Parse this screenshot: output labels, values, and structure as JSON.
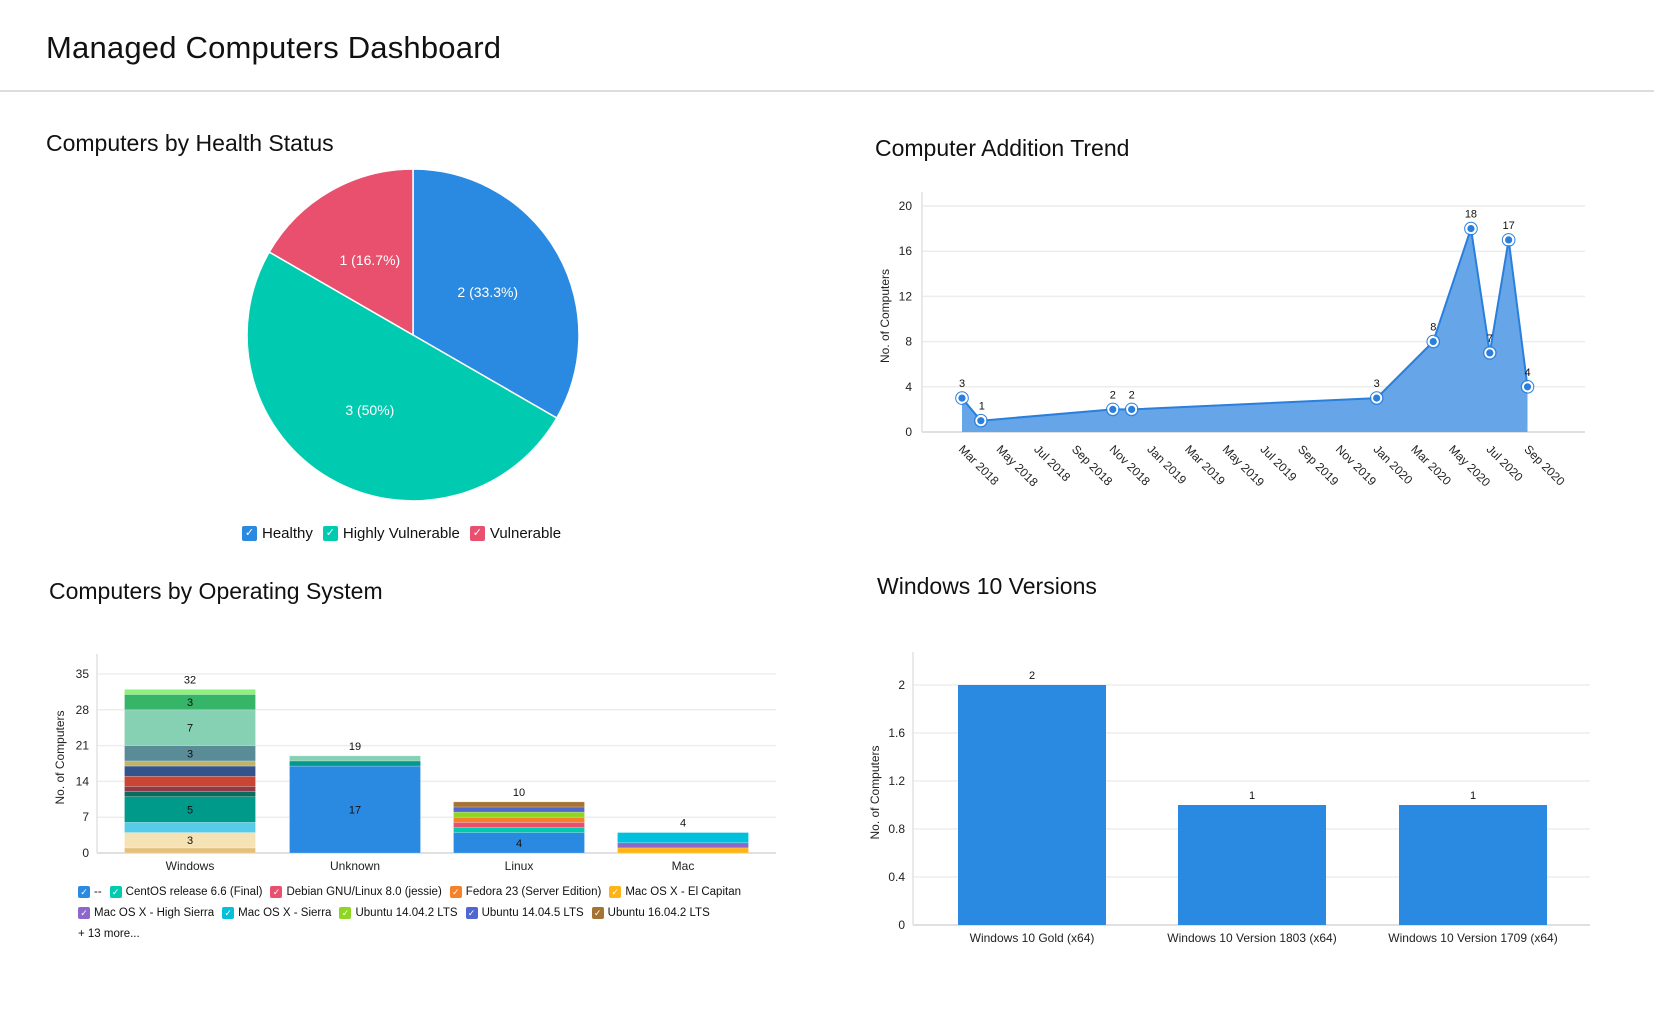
{
  "header": {
    "title": "Managed Computers Dashboard"
  },
  "colors": {
    "accent": "#2a8ae2",
    "teal": "#00cbb0",
    "red": "#e8506e",
    "area": "#66a6e8"
  },
  "chart_data": [
    {
      "id": "health",
      "type": "pie",
      "title": "Computers by Health Status",
      "slices": [
        {
          "label": "Healthy",
          "value": 2,
          "text": "2 (33.3%)",
          "color": "#2a8ae2"
        },
        {
          "label": "Highly Vulnerable",
          "value": 3,
          "text": "3 (50%)",
          "color": "#00cbb0"
        },
        {
          "label": "Vulnerable",
          "value": 1,
          "text": "1 (16.7%)",
          "color": "#e8506e"
        }
      ],
      "legend_position": "bottom"
    },
    {
      "id": "trend",
      "type": "area",
      "title": "Computer Addition Trend",
      "xlabel": "",
      "ylabel": "No. of Computers",
      "ylim": [
        0,
        21
      ],
      "yticks": [
        0,
        4,
        8,
        12,
        16,
        20
      ],
      "xtick_labels": [
        "Mar 2018",
        "May 2018",
        "Jul 2018",
        "Sep 2018",
        "Nov 2018",
        "Jan 2019",
        "Mar 2019",
        "May 2019",
        "Jul 2019",
        "Sep 2019",
        "Nov 2019",
        "Jan 2020",
        "Mar 2020",
        "May 2020",
        "Jul 2020",
        "Sep 2020"
      ],
      "points": [
        {
          "month": 0,
          "value": 3
        },
        {
          "month": 1,
          "value": 1
        },
        {
          "month": 8,
          "value": 2
        },
        {
          "month": 9,
          "value": 2
        },
        {
          "month": 22,
          "value": 3
        },
        {
          "month": 25,
          "value": 8
        },
        {
          "month": 27,
          "value": 18
        },
        {
          "month": 28,
          "value": 7
        },
        {
          "month": 29,
          "value": 17
        },
        {
          "month": 30,
          "value": 4
        }
      ],
      "grid": true,
      "color": "#2a7fdc"
    },
    {
      "id": "os",
      "type": "bar",
      "stacked": true,
      "title": "Computers by Operating System",
      "xlabel": "",
      "ylabel": "No. of Computers",
      "ylim": [
        0,
        37
      ],
      "yticks": [
        0,
        7,
        14,
        21,
        28,
        35
      ],
      "categories": [
        "Windows",
        "Unknown",
        "Linux",
        "Mac"
      ],
      "totals": [
        32,
        19,
        10,
        4
      ],
      "stacks": [
        [
          {
            "value": 1,
            "color": "#e5c07a",
            "label": ""
          },
          {
            "value": 3,
            "color": "#f5e2b5",
            "label": "3"
          },
          {
            "value": 2,
            "color": "#56cce8",
            "label": ""
          },
          {
            "value": 5,
            "color": "#009a8a",
            "label": "5"
          },
          {
            "value": 1,
            "color": "#0a6c5c",
            "label": ""
          },
          {
            "value": 1,
            "color": "#8e3a4a",
            "label": ""
          },
          {
            "value": 2,
            "color": "#c84632",
            "label": ""
          },
          {
            "value": 2,
            "color": "#34538a",
            "label": ""
          },
          {
            "value": 1,
            "color": "#c2b464",
            "label": ""
          },
          {
            "value": 3,
            "color": "#5a8c98",
            "label": "3"
          },
          {
            "value": 7,
            "color": "#86d0b4",
            "label": "7"
          },
          {
            "value": 3,
            "color": "#36b468",
            "label": "3"
          },
          {
            "value": 1,
            "color": "#8cf27c",
            "label": ""
          }
        ],
        [
          {
            "value": 17,
            "color": "#2a8ae2",
            "label": "17"
          },
          {
            "value": 1,
            "color": "#00998a",
            "label": ""
          },
          {
            "value": 1,
            "color": "#86d0b4",
            "label": ""
          }
        ],
        [
          {
            "value": 4,
            "color": "#2a8ae2",
            "label": "4"
          },
          {
            "value": 1,
            "color": "#00cbb0",
            "label": ""
          },
          {
            "value": 1,
            "color": "#e8506e",
            "label": ""
          },
          {
            "value": 1,
            "color": "#f58228",
            "label": ""
          },
          {
            "value": 1,
            "color": "#8ed622",
            "label": ""
          },
          {
            "value": 1,
            "color": "#5066d0",
            "label": ""
          },
          {
            "value": 1,
            "color": "#a67432",
            "label": ""
          }
        ],
        [
          {
            "value": 1,
            "color": "#fdb414",
            "label": ""
          },
          {
            "value": 1,
            "color": "#8c68cc",
            "label": ""
          },
          {
            "value": 2,
            "color": "#00c0dc",
            "label": ""
          }
        ]
      ],
      "legend": [
        [
          {
            "label": "--",
            "color": "#2a8ae2"
          },
          {
            "label": "CentOS release 6.6 (Final)",
            "color": "#00cbb0"
          },
          {
            "label": "Debian GNU/Linux 8.0 (jessie)",
            "color": "#e8506e"
          },
          {
            "label": "Fedora 23 (Server Edition)",
            "color": "#f58228"
          },
          {
            "label": "Mac OS X - El Capitan",
            "color": "#fdb414"
          }
        ],
        [
          {
            "label": "Mac OS X - High Sierra",
            "color": "#8c68cc"
          },
          {
            "label": "Mac OS X - Sierra",
            "color": "#00c0dc"
          },
          {
            "label": "Ubuntu 14.04.2 LTS",
            "color": "#8ed622"
          },
          {
            "label": "Ubuntu 14.04.5 LTS",
            "color": "#5066d0"
          },
          {
            "label": "Ubuntu 16.04.2 LTS",
            "color": "#a67432"
          }
        ]
      ],
      "legend_more": "+ 13 more...",
      "grid": true
    },
    {
      "id": "win10",
      "type": "bar",
      "title": "Windows 10 Versions",
      "xlabel": "",
      "ylabel": "No. of Computers",
      "ylim": [
        0,
        2.25
      ],
      "yticks": [
        "0",
        "0.4",
        "0.8",
        "1.2",
        "1.6",
        "2"
      ],
      "categories": [
        "Windows 10 Gold (x64)",
        "Windows 10 Version 1803 (x64)",
        "Windows 10 Version 1709 (x64)"
      ],
      "values": [
        2,
        1,
        1
      ],
      "color": "#2a8ae2",
      "grid": true
    }
  ]
}
